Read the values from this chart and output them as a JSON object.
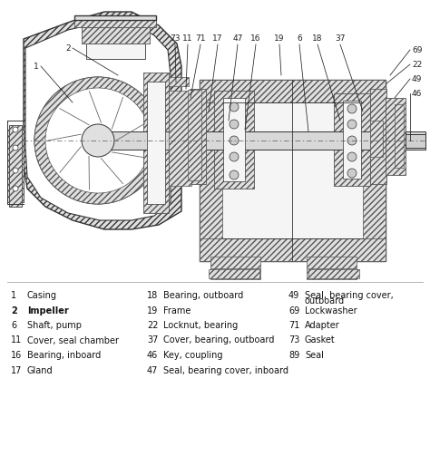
{
  "parts_col1": [
    {
      "num": "1",
      "name": "Casing",
      "bold": false
    },
    {
      "num": "2",
      "name": "Impeller",
      "bold": true
    },
    {
      "num": "6",
      "name": "Shaft, pump",
      "bold": false
    },
    {
      "num": "11",
      "name": "Cover, seal chamber",
      "bold": false
    },
    {
      "num": "16",
      "name": "Bearing, inboard",
      "bold": false
    },
    {
      "num": "17",
      "name": "Gland",
      "bold": false
    }
  ],
  "parts_col2": [
    {
      "num": "18",
      "name": "Bearing, outboard",
      "bold": false
    },
    {
      "num": "19",
      "name": "Frame",
      "bold": false
    },
    {
      "num": "22",
      "name": "Locknut, bearing",
      "bold": false
    },
    {
      "num": "37",
      "name": "Cover, bearing, outboard",
      "bold": false
    },
    {
      "num": "46",
      "name": "Key, coupling",
      "bold": false
    },
    {
      "num": "47",
      "name": "Seal, bearing cover, inboard",
      "bold": false
    }
  ],
  "parts_col3": [
    {
      "num": "49",
      "name": "Seal, bearing cover,\noutboard",
      "bold": false
    },
    {
      "num": "69",
      "name": "Lockwasher",
      "bold": false
    },
    {
      "num": "71",
      "name": "Adapter",
      "bold": false
    },
    {
      "num": "73",
      "name": "Gasket",
      "bold": false
    },
    {
      "num": "89",
      "name": "Seal",
      "bold": false
    }
  ],
  "hatch_color": "#555555",
  "line_color": "#333333",
  "metal_light": "#e0e0e0",
  "metal_white": "#f5f5f5"
}
